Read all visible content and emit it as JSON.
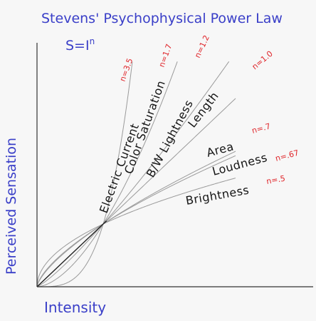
{
  "chart_data": {
    "type": "line",
    "title": "Stevens' Psychophysical Power Law",
    "subtitle": "S=I",
    "subtitle_exponent": "n",
    "xlabel": "Intensity",
    "ylabel": "Perceived Sensation",
    "x": [
      0,
      0.125,
      0.25,
      0.375,
      0.5,
      0.625,
      0.75,
      0.875,
      1.0,
      1.25,
      1.5,
      1.75,
      2.0,
      2.25,
      2.5,
      2.75,
      3.0
    ],
    "xlim": [
      0,
      3
    ],
    "ylim": [
      0,
      3.6
    ],
    "grid": false,
    "series": [
      {
        "name": "Electric Current",
        "exponent": 3.5,
        "exponent_label": "n=3.5"
      },
      {
        "name": "Color Saturation",
        "exponent": 1.7,
        "exponent_label": "n=1.7"
      },
      {
        "name": "B/W Lightness",
        "exponent": 1.2,
        "exponent_label": "n=1.2"
      },
      {
        "name": "Length",
        "exponent": 1.0,
        "exponent_label": "n=1.0"
      },
      {
        "name": "Area",
        "exponent": 0.7,
        "exponent_label": "n=.7"
      },
      {
        "name": "Loudness",
        "exponent": 0.67,
        "exponent_label": "n=.67"
      },
      {
        "name": "Brightness",
        "exponent": 0.5,
        "exponent_label": "n=.5"
      }
    ],
    "line_color": "#9a9a9a",
    "axis_color": "#333333",
    "title_color": "#3a3fc8",
    "label_color": "#151515",
    "exponent_color": "#e0262b"
  }
}
